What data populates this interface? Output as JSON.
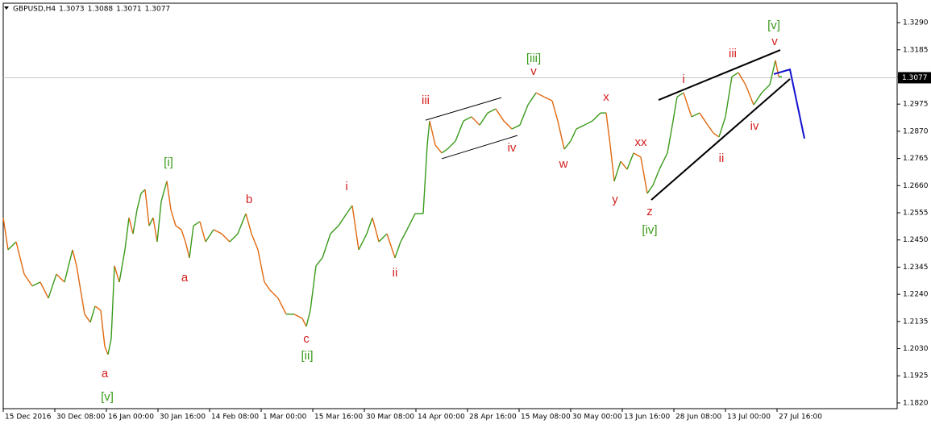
{
  "chart_data": {
    "type": "line",
    "header": [
      "GBPUSD,H4",
      "1.3073",
      "1.3088",
      "1.3071",
      "1.3077"
    ],
    "last_price": 1.3077,
    "xlim": [
      0,
      1109
    ],
    "xticks": [
      {
        "value": 0,
        "label": "15 Dec 2016"
      },
      {
        "value": 64,
        "label": "30 Dec 08:00"
      },
      {
        "value": 128,
        "label": "16 Jan 00:00"
      },
      {
        "value": 192,
        "label": "30 Jan 16:00"
      },
      {
        "value": 256,
        "label": "14 Feb 08:00"
      },
      {
        "value": 320,
        "label": "1 Mar 00:00"
      },
      {
        "value": 384,
        "label": "15 Mar 16:00"
      },
      {
        "value": 448,
        "label": "30 Mar 08:00"
      },
      {
        "value": 512,
        "label": "14 Apr 00:00"
      },
      {
        "value": 576,
        "label": "28 Apr 16:00"
      },
      {
        "value": 640,
        "label": "15 May 08:00"
      },
      {
        "value": 704,
        "label": "30 May 00:00"
      },
      {
        "value": 768,
        "label": "13 Jun 16:00"
      },
      {
        "value": 832,
        "label": "28 Jun 08:00"
      },
      {
        "value": 896,
        "label": "13 Jul 00:00"
      },
      {
        "value": 960,
        "label": "27 Jul 16:00"
      }
    ],
    "ylim": [
      1.1798,
      1.3365
    ],
    "yticks": [
      {
        "value": 1.329,
        "label": "1.3290"
      },
      1.3185,
      {
        "value": 1.308,
        "label": "1.3080"
      },
      1.2975,
      {
        "value": 1.287,
        "label": "1.2870"
      },
      1.2765,
      {
        "value": 1.266,
        "label": "1.2660"
      },
      1.2555,
      {
        "value": 1.245,
        "label": "1.2450"
      },
      1.2345,
      {
        "value": 1.224,
        "label": "1.2240"
      },
      1.2135,
      {
        "value": 1.203,
        "label": "1.2030"
      },
      1.1925,
      {
        "value": 1.182,
        "label": "1.1820"
      }
    ],
    "series": [
      {
        "name": "GBPUSD",
        "color": "#3a9a1a",
        "down_color": "#e0680f",
        "x": [
          0,
          6,
          16,
          26,
          36,
          46,
          56,
          66,
          76,
          86,
          91,
          96,
          101,
          108,
          114,
          121,
          126,
          130,
          134,
          138,
          144,
          151,
          156,
          161,
          166,
          171,
          176,
          181,
          186,
          191,
          196,
          203,
          208,
          214,
          221,
          226,
          231,
          236,
          244,
          251,
          261,
          271,
          281,
          291,
          301,
          308,
          316,
          324,
          331,
          341,
          351,
          361,
          371,
          376,
          381,
          388,
          396,
          406,
          416,
          426,
          433,
          441,
          451,
          458,
          466,
          476,
          486,
          493,
          501,
          511,
          521,
          526,
          529,
          536,
          544,
          551,
          561,
          571,
          581,
          591,
          601,
          611,
          621,
          631,
          641,
          651,
          661,
          671,
          681,
          688,
          696,
          704,
          711,
          721,
          731,
          741,
          748,
          753,
          758,
          766,
          774,
          782,
          791,
          799,
          806,
          814,
          824,
          831,
          836,
          844,
          854,
          864,
          874,
          881,
          888,
          896,
          904,
          912,
          921,
          931,
          941,
          951,
          958,
          962,
          966
        ],
        "values": [
          1.2536,
          1.2412,
          1.2443,
          1.2318,
          1.2272,
          1.2287,
          1.2225,
          1.2318,
          1.2287,
          1.2412,
          1.235,
          1.2256,
          1.2163,
          1.2132,
          1.2194,
          1.2178,
          1.2038,
          1.2007,
          1.2069,
          1.235,
          1.2287,
          1.2412,
          1.2536,
          1.2474,
          1.2567,
          1.263,
          1.2645,
          1.2505,
          1.2536,
          1.2443,
          1.2599,
          1.2677,
          1.2567,
          1.2505,
          1.249,
          1.2443,
          1.2381,
          1.2505,
          1.2521,
          1.2443,
          1.249,
          1.2474,
          1.2443,
          1.2474,
          1.2552,
          1.2474,
          1.2412,
          1.2287,
          1.2256,
          1.2225,
          1.2163,
          1.2163,
          1.2147,
          1.2116,
          1.2178,
          1.235,
          1.2381,
          1.2474,
          1.2505,
          1.2552,
          1.2583,
          1.2412,
          1.2474,
          1.2536,
          1.2443,
          1.2474,
          1.2381,
          1.2443,
          1.249,
          1.2552,
          1.2552,
          1.2817,
          1.291,
          1.2817,
          1.2786,
          1.2801,
          1.2832,
          1.291,
          1.2926,
          1.2894,
          1.2941,
          1.2957,
          1.291,
          1.2879,
          1.2894,
          1.2972,
          1.3019,
          1.3003,
          1.2988,
          1.291,
          1.2801,
          1.2832,
          1.2879,
          1.2894,
          1.291,
          1.2941,
          1.2941,
          1.2817,
          1.2677,
          1.2754,
          1.2723,
          1.2786,
          1.277,
          1.263,
          1.2661,
          1.2723,
          1.2786,
          1.291,
          1.3003,
          1.3019,
          1.2926,
          1.2941,
          1.2894,
          1.2863,
          1.2848,
          1.2926,
          1.3081,
          1.3097,
          1.305,
          1.2972,
          1.3019,
          1.305,
          1.3144,
          1.3081,
          1.3081
        ]
      }
    ],
    "annotations": [
      {
        "text": "[v]",
        "x": 956,
        "y": 1.3278,
        "color": "#3a9a1a"
      },
      {
        "text": "v",
        "x": 957,
        "y": 1.3215,
        "color": "#d42020"
      },
      {
        "text": "iii",
        "x": 905,
        "y": 1.3169,
        "color": "#d42020"
      },
      {
        "text": "i",
        "x": 844,
        "y": 1.3069,
        "color": "#d42020"
      },
      {
        "text": "ii",
        "x": 891,
        "y": 1.2764,
        "color": "#d42020"
      },
      {
        "text": "iv",
        "x": 932,
        "y": 1.2888,
        "color": "#d42020"
      },
      {
        "text": "xx",
        "x": 791,
        "y": 1.2826,
        "color": "#d42020"
      },
      {
        "text": "y",
        "x": 759,
        "y": 1.2605,
        "color": "#d42020"
      },
      {
        "text": "z",
        "x": 802,
        "y": 1.2558,
        "color": "#d42020"
      },
      {
        "text": "[iv]",
        "x": 802,
        "y": 1.2487,
        "color": "#3a9a1a"
      },
      {
        "text": "x",
        "x": 748,
        "y": 1.3,
        "color": "#d42020"
      },
      {
        "text": "w",
        "x": 695,
        "y": 1.2742,
        "color": "#d42020"
      },
      {
        "text": "v",
        "x": 658,
        "y": 1.31,
        "color": "#d42020"
      },
      {
        "text": "[iii]",
        "x": 658,
        "y": 1.315,
        "color": "#3a9a1a"
      },
      {
        "text": "iv",
        "x": 631,
        "y": 1.2804,
        "color": "#d42020"
      },
      {
        "text": "iii",
        "x": 524,
        "y": 1.2988,
        "color": "#d42020"
      },
      {
        "text": "i",
        "x": 426,
        "y": 1.2655,
        "color": "#d42020"
      },
      {
        "text": "ii",
        "x": 486,
        "y": 1.2321,
        "color": "#d42020"
      },
      {
        "text": "c",
        "x": 376,
        "y": 1.2066,
        "color": "#d42020"
      },
      {
        "text": "[ii]",
        "x": 377,
        "y": 1.2001,
        "color": "#3a9a1a"
      },
      {
        "text": "b",
        "x": 305,
        "y": 1.2605,
        "color": "#d42020"
      },
      {
        "text": "a",
        "x": 225,
        "y": 1.2303,
        "color": "#d42020"
      },
      {
        "text": "[i]",
        "x": 205,
        "y": 1.2748,
        "color": "#3a9a1a"
      },
      {
        "text": "a",
        "x": 126,
        "y": 1.1932,
        "color": "#d42020"
      },
      {
        "text": "[v]",
        "x": 129,
        "y": 1.1842,
        "color": "#3a9a1a"
      }
    ],
    "drawings": [
      {
        "x": [
          524,
          618
        ],
        "y": [
          1.2913,
          1.3
        ],
        "color": "#000000",
        "width": 1
      },
      {
        "x": [
          544,
          638
        ],
        "y": [
          1.2764,
          1.2854
        ],
        "color": "#000000",
        "width": 1
      },
      {
        "x": [
          813,
          964
        ],
        "y": [
          1.2991,
          1.3184
        ],
        "color": "#000000",
        "width": 2
      },
      {
        "x": [
          804,
          976
        ],
        "y": [
          1.2605,
          1.3072
        ],
        "color": "#000000",
        "width": 2
      },
      {
        "x": [
          956,
          976,
          994
        ],
        "y": [
          1.3091,
          1.3109,
          1.2842
        ],
        "color": "#1010d0",
        "width": 2
      }
    ]
  }
}
